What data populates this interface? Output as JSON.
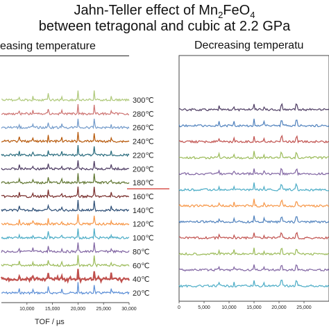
{
  "title_line1": "Jahn-Teller effect of Mn",
  "title_sub1": "2",
  "title_mid": "FeO",
  "title_sub2": "4",
  "title_line2": "between tetragonal and cubic at 2.2 GPa",
  "left_header": "easing temperature",
  "right_header": "Decreasing temperatu",
  "x_axis_title": "TOF / µs",
  "chart_data": [
    {
      "type": "line",
      "title": "easing temperature",
      "xlabel": "TOF / µs",
      "xlim": [
        5000,
        30000
      ],
      "x_ticks": [
        "10,000",
        "15,000",
        "20,000",
        "25,000",
        "30,000"
      ],
      "series": [
        {
          "name": "20℃",
          "color": "#5b8ed6"
        },
        {
          "name": "40℃",
          "color": "#c0504d"
        },
        {
          "name": "60℃",
          "color": "#9bbb59"
        },
        {
          "name": "80℃",
          "color": "#8064a2"
        },
        {
          "name": "100℃",
          "color": "#4bacc6"
        },
        {
          "name": "120℃",
          "color": "#f79646"
        },
        {
          "name": "140℃",
          "color": "#2c4d75"
        },
        {
          "name": "160℃",
          "color": "#772c2a"
        },
        {
          "name": "180℃",
          "color": "#5f7530"
        },
        {
          "name": "200℃",
          "color": "#4d3b62"
        },
        {
          "name": "220℃",
          "color": "#276a7c"
        },
        {
          "name": "240℃",
          "color": "#b65708"
        },
        {
          "name": "260℃",
          "color": "#729aca"
        },
        {
          "name": "280℃",
          "color": "#cd7371"
        },
        {
          "name": "300℃",
          "color": "#afc97a"
        }
      ],
      "peaks_x": [
        14200,
        20000,
        23200,
        16800,
        11200,
        8500,
        26500
      ],
      "transition_marker": "180℃"
    },
    {
      "type": "line",
      "title": "Decreasing temperatu",
      "xlabel": "TOF / µs",
      "xlim": [
        0,
        30000
      ],
      "x_ticks": [
        "0",
        "5,000",
        "10,000",
        "15,000",
        "20,000",
        "25,000"
      ],
      "series": [
        {
          "color": "#4bacc6"
        },
        {
          "color": "#8064a2"
        },
        {
          "color": "#9bbb59"
        },
        {
          "color": "#c0504d"
        },
        {
          "color": "#4f81bd"
        },
        {
          "color": "#f79646"
        },
        {
          "color": "#4bacc6"
        },
        {
          "color": "#8064a2"
        },
        {
          "color": "#9bbb59"
        },
        {
          "color": "#c0504d"
        },
        {
          "color": "#4f81bd"
        },
        {
          "color": "#4d3b62"
        }
      ],
      "peaks_x": [
        15000,
        20500,
        23500,
        17000,
        11000,
        8000
      ]
    }
  ]
}
